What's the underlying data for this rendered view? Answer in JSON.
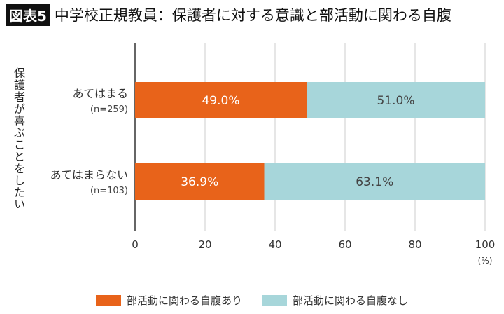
{
  "title": {
    "badge": "図表5",
    "text": "中学校正規教員：保護者に対する意識と部活動に関わる自腹"
  },
  "chart_data": {
    "type": "bar",
    "orientation": "horizontal",
    "stacked": true,
    "ylabel": "保護者が喜ぶことをしたい",
    "categories": [
      {
        "label": "あてはまる",
        "n": "(n=259)"
      },
      {
        "label": "あてはまらない",
        "n": "(n=103)"
      }
    ],
    "series": [
      {
        "name": "部活動に関わる自腹あり",
        "color": "#E8631A",
        "values": [
          49.0,
          36.9
        ],
        "labels": [
          "49.0%",
          "36.9%"
        ]
      },
      {
        "name": "部活動に関わる自腹なし",
        "color": "#A7D6DA",
        "values": [
          51.0,
          63.1
        ],
        "labels": [
          "51.0%",
          "63.1%"
        ]
      }
    ],
    "xlim": [
      0,
      100
    ],
    "xticks": [
      "0",
      "20",
      "40",
      "60",
      "80",
      "100"
    ],
    "xunit": "(%)",
    "grid": true,
    "legend_position": "bottom"
  }
}
